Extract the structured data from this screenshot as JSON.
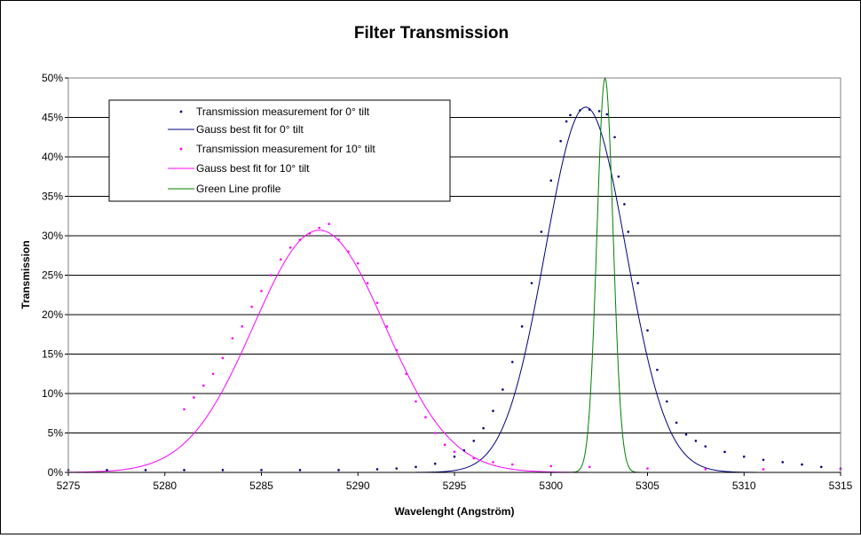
{
  "chart_data": {
    "type": "scatter",
    "title": "Filter Transmission",
    "xlabel": "Wavelenght (Angström)",
    "ylabel": "Transmission",
    "xlim": [
      5275,
      5315
    ],
    "ylim": [
      0,
      50
    ],
    "x_ticks": [
      "5275",
      "5280",
      "5285",
      "5290",
      "5295",
      "5300",
      "5305",
      "5310",
      "5315"
    ],
    "y_ticks": [
      "0%",
      "5%",
      "10%",
      "15%",
      "20%",
      "25%",
      "30%",
      "35%",
      "40%",
      "45%",
      "50%"
    ],
    "grid": "horizontal",
    "legend_position": "top-left",
    "series": [
      {
        "name": "Transmission measurement for 0° tilt",
        "kind": "markers",
        "color": "#000080",
        "points": [
          [
            5275,
            0.3
          ],
          [
            5277,
            0.3
          ],
          [
            5279,
            0.3
          ],
          [
            5281,
            0.3
          ],
          [
            5283,
            0.3
          ],
          [
            5285,
            0.3
          ],
          [
            5287,
            0.3
          ],
          [
            5289,
            0.3
          ],
          [
            5291,
            0.4
          ],
          [
            5292,
            0.5
          ],
          [
            5293,
            0.7
          ],
          [
            5294,
            1.1
          ],
          [
            5295,
            2.0
          ],
          [
            5295.5,
            2.8
          ],
          [
            5296,
            4.0
          ],
          [
            5296.5,
            5.6
          ],
          [
            5297,
            7.8
          ],
          [
            5297.5,
            10.5
          ],
          [
            5298,
            14.0
          ],
          [
            5298.5,
            18.5
          ],
          [
            5299,
            24.0
          ],
          [
            5299.5,
            30.5
          ],
          [
            5300,
            37.0
          ],
          [
            5300.5,
            42.0
          ],
          [
            5300.8,
            44.5
          ],
          [
            5301,
            45.3
          ],
          [
            5301.5,
            45.9
          ],
          [
            5302,
            46.0
          ],
          [
            5302.5,
            45.8
          ],
          [
            5302.9,
            45.4
          ],
          [
            5303.3,
            42.5
          ],
          [
            5303.5,
            37.5
          ],
          [
            5303.8,
            34.0
          ],
          [
            5304,
            30.5
          ],
          [
            5304.5,
            24.0
          ],
          [
            5305,
            18.0
          ],
          [
            5305.5,
            13.0
          ],
          [
            5306,
            9.0
          ],
          [
            5306.5,
            6.3
          ],
          [
            5307,
            4.8
          ],
          [
            5307.5,
            4.0
          ],
          [
            5308,
            3.3
          ],
          [
            5309,
            2.6
          ],
          [
            5310,
            2.0
          ],
          [
            5311,
            1.6
          ],
          [
            5312,
            1.3
          ],
          [
            5313,
            1.0
          ],
          [
            5314,
            0.7
          ],
          [
            5315,
            0.5
          ]
        ]
      },
      {
        "name": "Gauss best fit for 0° tilt",
        "kind": "line",
        "color": "#000080",
        "center": 5301.8,
        "sigma": 2.1,
        "peak": 46.3
      },
      {
        "name": "Transmission measurement for 10° tilt",
        "kind": "markers",
        "color": "#ff00ff",
        "points": [
          [
            5281,
            8.0
          ],
          [
            5281.5,
            9.5
          ],
          [
            5282,
            11.0
          ],
          [
            5282.5,
            12.5
          ],
          [
            5283,
            14.5
          ],
          [
            5283.5,
            17.0
          ],
          [
            5284,
            18.5
          ],
          [
            5284.5,
            21.0
          ],
          [
            5285,
            23.0
          ],
          [
            5285.5,
            25.0
          ],
          [
            5286,
            27.0
          ],
          [
            5286.5,
            28.5
          ],
          [
            5287,
            29.5
          ],
          [
            5287.5,
            30.3
          ],
          [
            5288,
            31.0
          ],
          [
            5288.5,
            31.5
          ],
          [
            5289,
            29.5
          ],
          [
            5289.5,
            28.0
          ],
          [
            5290,
            26.5
          ],
          [
            5290.5,
            24.0
          ],
          [
            5291,
            21.5
          ],
          [
            5291.5,
            18.5
          ],
          [
            5292,
            15.5
          ],
          [
            5292.5,
            12.5
          ],
          [
            5293,
            9.0
          ],
          [
            5293.5,
            7.0
          ],
          [
            5294,
            5.0
          ],
          [
            5294.5,
            3.5
          ],
          [
            5295,
            2.6
          ],
          [
            5296,
            1.8
          ],
          [
            5297,
            1.3
          ],
          [
            5298,
            1.0
          ],
          [
            5300,
            0.8
          ],
          [
            5302,
            0.7
          ],
          [
            5305,
            0.5
          ],
          [
            5308,
            0.4
          ],
          [
            5311,
            0.4
          ],
          [
            5315,
            0.4
          ]
        ]
      },
      {
        "name": "Gauss best fit for 10° tilt",
        "kind": "line",
        "color": "#ff00ff",
        "center": 5288.0,
        "sigma": 3.4,
        "peak": 30.7
      },
      {
        "name": "Green Line profile",
        "kind": "line",
        "color": "#008000",
        "center": 5302.8,
        "sigma": 0.42,
        "peak": 50.0
      }
    ]
  }
}
